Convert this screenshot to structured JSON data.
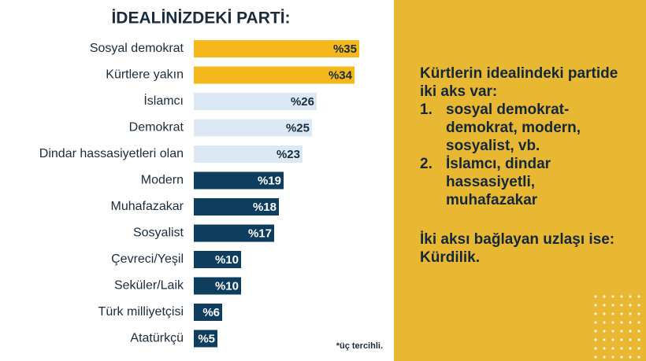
{
  "chart_data": {
    "type": "bar",
    "orientation": "horizontal",
    "title": "İDEALİNİZDEKİ PARTİ:",
    "categories": [
      "Sosyal demokrat",
      "Kürtlere yakın",
      "İslamcı",
      "Demokrat",
      "Dindar hassasiyetleri olan",
      "Modern",
      "Muhafazakar",
      "Sosyalist",
      "Çevreci/Yeşil",
      "Seküler/Laik",
      "Türk milliyetçisi",
      "Atatürkçü"
    ],
    "values": [
      35,
      34,
      26,
      25,
      23,
      19,
      18,
      17,
      10,
      10,
      6,
      5
    ],
    "value_labels": [
      "%35",
      "%34",
      "%26",
      "%25",
      "%23",
      "%19",
      "%18",
      "%17",
      "%10",
      "%10",
      "%6",
      "%5"
    ],
    "colors": [
      "#f4b81c",
      "#f4b81c",
      "#dce8f4",
      "#dce8f4",
      "#dce8f4",
      "#0f3d5e",
      "#0f3d5e",
      "#0f3d5e",
      "#0f3d5e",
      "#0f3d5e",
      "#0f3d5e",
      "#0f3d5e"
    ],
    "note": "*üç tercihli."
  },
  "panel": {
    "heading": "Kürtlerin idealindeki partide iki aks var:",
    "items": [
      {
        "number": "1.",
        "text": "sosyal demokrat-demokrat, modern, sosyalist, vb."
      },
      {
        "number": "2.",
        "text": "İslamcı, dindar hassasiyetli, muhafazakar"
      }
    ],
    "conclusion": "İki aksı bağlayan uzlaşı ise: Kürdilik."
  }
}
